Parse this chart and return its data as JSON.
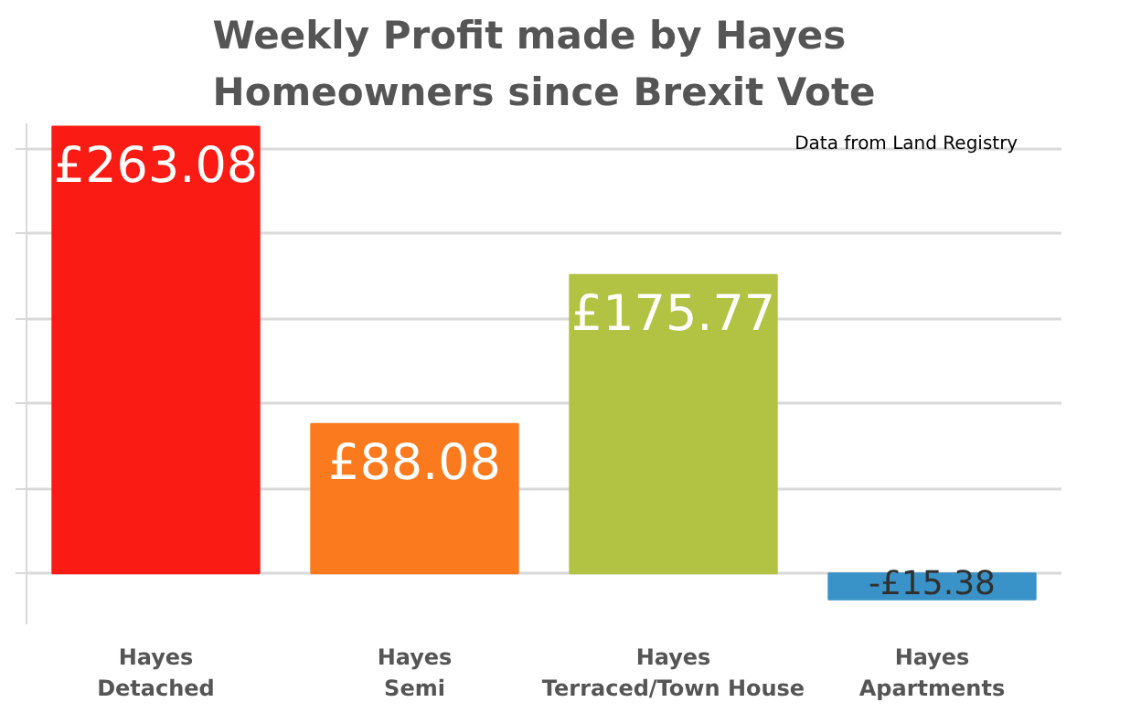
{
  "chart_data": {
    "type": "bar",
    "title": "Weekly Profit made by Hayes\nHomeowners since Brexit Vote",
    "categories": [
      "Hayes\nDetached",
      "Hayes\nSemi",
      "Hayes\nTerraced/Town House",
      "Hayes\nApartments"
    ],
    "values": [
      263.08,
      88.08,
      175.77,
      -15.38
    ],
    "colors": [
      "#f91b14",
      "#fb7a1e",
      "#b2c243",
      "#3a93c8"
    ],
    "value_labels": [
      "£263.08",
      "£88.08",
      "£175.77",
      "-£15.38"
    ],
    "ylim": [
      -30,
      265
    ],
    "yticks": [
      {
        "value": 0,
        "label": null
      },
      {
        "value": 50,
        "label": null
      },
      {
        "value": 100,
        "label": null
      },
      {
        "value": 150,
        "label": null
      },
      {
        "value": 200,
        "label": null
      },
      {
        "value": 250,
        "label": null
      }
    ],
    "grid": "y",
    "tick_labels": "x",
    "annotations": [
      "Data from Land Registry"
    ]
  }
}
